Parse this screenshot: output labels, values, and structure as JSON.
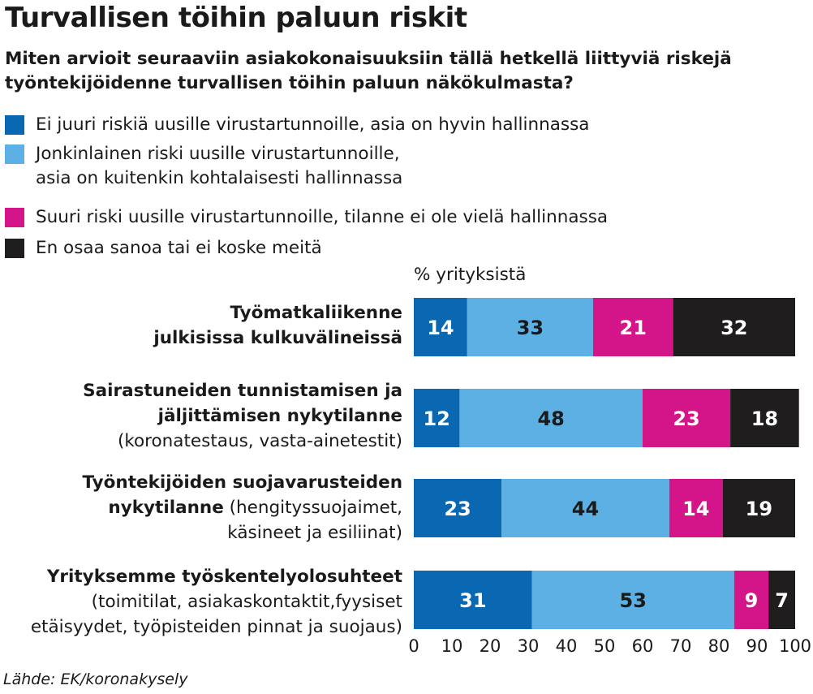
{
  "chart_data": {
    "type": "bar",
    "orientation": "horizontal-stacked",
    "title": "Turvallisen töihin paluun riskit",
    "subtitle": "Miten arvioit seuraaviin asiakokonaisuuksiin tällä hetkellä liittyviä riskejä työntekijöidenne turvallisen töihin paluun näkökulmasta?",
    "unit_label": "% yrityksistä",
    "xlim": [
      0,
      100
    ],
    "xticks": [
      0,
      10,
      20,
      30,
      40,
      50,
      60,
      70,
      80,
      90,
      100
    ],
    "categories": [
      {
        "lines": [
          {
            "bold": "Työmatkaliikenne"
          },
          {
            "bold": "julkisissa kulkuvälineissä"
          }
        ]
      },
      {
        "lines": [
          {
            "bold": "Sairastuneiden tunnistamisen ja"
          },
          {
            "bold": "jäljittämisen nykytilanne"
          },
          {
            "normal": "(koronatestaus, vasta-ainetestit)"
          }
        ]
      },
      {
        "lines": [
          {
            "bold": "Työntekijöiden suojavarusteiden"
          },
          {
            "bold": "nykytilanne",
            "normal": " (hengityssuojaimet,"
          },
          {
            "normal": "käsineet ja esiliinat)"
          }
        ]
      },
      {
        "lines": [
          {
            "bold": "Yrityksemme työskentelyolosuhteet"
          },
          {
            "normal": "(toimitilat, asiakaskontaktit,fyysiset"
          },
          {
            "normal": "etäisyydet, työpisteiden pinnat ja suojaus)"
          }
        ]
      }
    ],
    "series": [
      {
        "name": "Ei juuri riskiä uusille virustartunnoille, asia on hyvin hallinnassa",
        "color": "#0a67b2",
        "label_color": "#ffffff",
        "values": [
          14,
          12,
          23,
          31
        ]
      },
      {
        "name": "Jonkinlainen riski uusille virustartunnoille,\nasia on kuitenkin kohtalaisesti hallinnassa",
        "color": "#5db0e3",
        "label_color": "#1a1a1a",
        "values": [
          33,
          48,
          44,
          53
        ]
      },
      {
        "name": "Suuri riski uusille virustartunnoille, tilanne ei ole vielä hallinnassa",
        "color": "#d4158a",
        "label_color": "#ffffff",
        "values": [
          21,
          23,
          14,
          9
        ]
      },
      {
        "name": "En osaa sanoa tai ei koske meitä",
        "color": "#1f1d1e",
        "label_color": "#ffffff",
        "values": [
          32,
          18,
          19,
          7
        ]
      }
    ]
  },
  "source": "Lähde: EK/koronakysely"
}
